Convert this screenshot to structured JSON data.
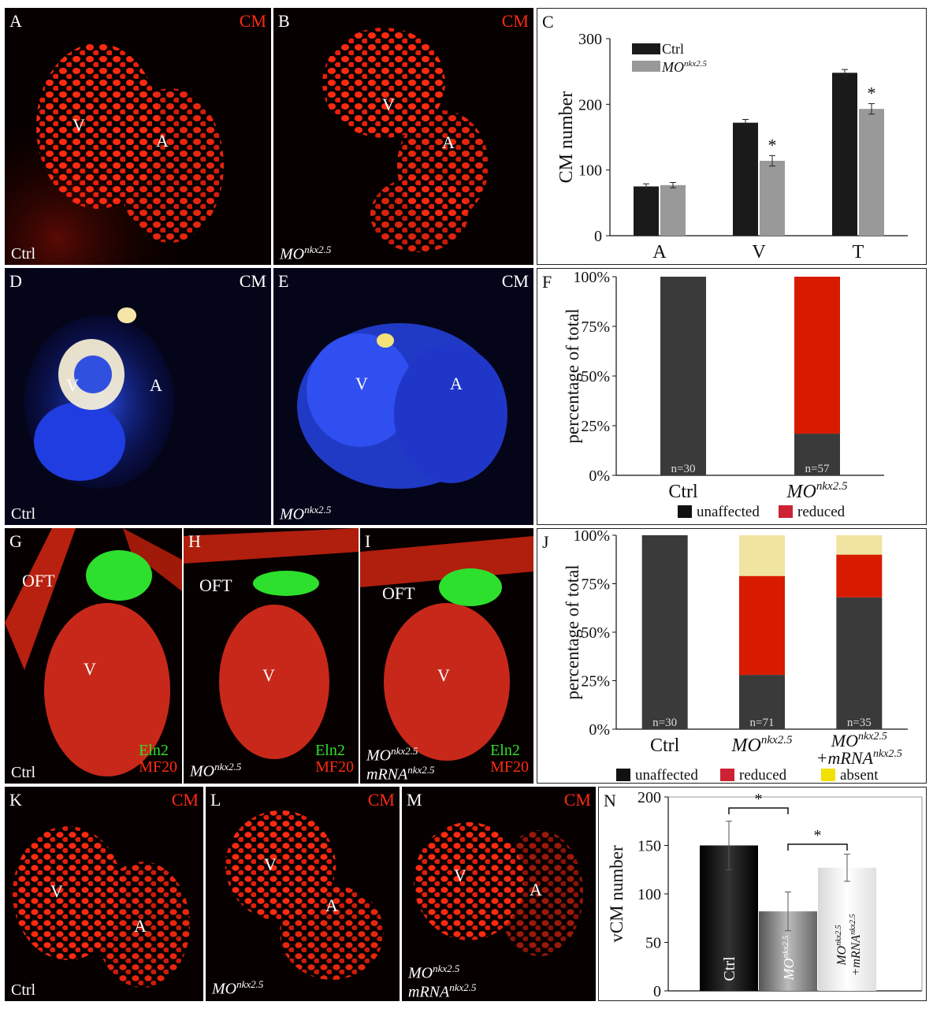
{
  "figure": {
    "panel_letters": [
      "A",
      "B",
      "C",
      "D",
      "E",
      "F",
      "G",
      "H",
      "I",
      "J",
      "K",
      "L",
      "M",
      "N"
    ],
    "cm": "CM",
    "ctrl": "Ctrl",
    "mo": "MO",
    "nkx": "nkx2.5",
    "mrna": "mRNA",
    "v": "V",
    "a": "A",
    "oft": "OFT",
    "eln2": "Eln2",
    "mf20": "MF20"
  },
  "colors": {
    "unaffected": "#1a1a1a",
    "reduced": "#cc1800",
    "absent": "#f0e4a0",
    "ctrl_bar": "#1a1a1a",
    "mo_bar": "#999999"
  },
  "chart_data": [
    {
      "panel": "C",
      "type": "bar",
      "categories": [
        "A",
        "V",
        "T"
      ],
      "series": [
        {
          "name": "Ctrl",
          "values": [
            75,
            172,
            248
          ],
          "errors": [
            4,
            5,
            5
          ]
        },
        {
          "name": "MOnkx2.5",
          "values": [
            77,
            114,
            193
          ],
          "errors": [
            4,
            8,
            8
          ]
        }
      ],
      "ylabel": "CM number",
      "yticks": [
        0,
        100,
        200,
        300
      ],
      "ylim": [
        0,
        300
      ],
      "significance": [
        "",
        "*",
        "*"
      ],
      "legend": "top-left"
    },
    {
      "panel": "F",
      "type": "bar",
      "stacked": true,
      "categories": [
        "Ctrl",
        "MOnkx2.5"
      ],
      "series": [
        {
          "name": "unaffected",
          "values": [
            100,
            21
          ]
        },
        {
          "name": "reduced",
          "values": [
            0,
            79
          ]
        }
      ],
      "n_labels": [
        "n=30",
        "n=57"
      ],
      "ylabel": "percentage of total",
      "yticks": [
        "0%",
        "25%",
        "50%",
        "75%",
        "100%"
      ],
      "ylim": [
        0,
        100
      ],
      "legend": "bottom"
    },
    {
      "panel": "J",
      "type": "bar",
      "stacked": true,
      "categories": [
        "Ctrl",
        "MOnkx2.5",
        "MOnkx2.5 +mRNAnkx2.5"
      ],
      "series": [
        {
          "name": "unaffected",
          "values": [
            100,
            28,
            68
          ]
        },
        {
          "name": "reduced",
          "values": [
            0,
            51,
            22
          ]
        },
        {
          "name": "absent",
          "values": [
            0,
            21,
            10
          ]
        }
      ],
      "n_labels": [
        "n=30",
        "n=71",
        "n=35"
      ],
      "ylabel": "percentage of total",
      "yticks": [
        "0%",
        "25%",
        "50%",
        "75%",
        "100%"
      ],
      "ylim": [
        0,
        100
      ],
      "legend": "bottom"
    },
    {
      "panel": "N",
      "type": "bar",
      "categories": [
        "Ctrl",
        "MOnkx2.5",
        "MOnkx2.5 +mRNAnkx2.5"
      ],
      "values": [
        150,
        82,
        127
      ],
      "errors": [
        25,
        20,
        14
      ],
      "ylabel": "vCM number",
      "yticks": [
        0,
        50,
        100,
        150,
        200
      ],
      "ylim": [
        0,
        200
      ],
      "significance_brackets": [
        [
          "Ctrl",
          "MOnkx2.5",
          "*"
        ],
        [
          "MOnkx2.5",
          "MOnkx2.5 +mRNAnkx2.5",
          "*"
        ]
      ]
    }
  ]
}
